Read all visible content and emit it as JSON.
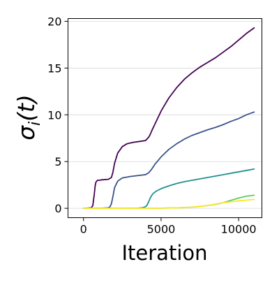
{
  "chart_data": {
    "type": "line",
    "title": "",
    "xlabel": "Iteration",
    "ylabel": "σi(t)",
    "ylabel_parts": {
      "main": "σ",
      "sub": "i",
      "arg": "(t)"
    },
    "xlim": [
      -1000,
      11500
    ],
    "ylim": [
      -1.0,
      20.3
    ],
    "xticks": [
      0,
      5000,
      10000
    ],
    "xtick_labels": [
      "0",
      "5000",
      "10000"
    ],
    "yticks": [
      0,
      5,
      10,
      15,
      20
    ],
    "ytick_labels": [
      "0",
      "5",
      "10",
      "15",
      "20"
    ],
    "grid": {
      "x": false,
      "y": true
    },
    "legend": "none",
    "series": [
      {
        "color": "#440154",
        "x": [
          0,
          500,
          600,
          700,
          750,
          800,
          900,
          1000,
          1200,
          1600,
          1800,
          1900,
          2000,
          2200,
          2500,
          2800,
          3200,
          3600,
          4000,
          4200,
          4300,
          4400,
          4600,
          5000,
          5500,
          6000,
          6500,
          7000,
          7500,
          8000,
          8500,
          9000,
          9500,
          10000,
          10500,
          11000
        ],
        "y": [
          0,
          0.05,
          0.3,
          1.6,
          2.4,
          2.8,
          3.0,
          3.0,
          3.05,
          3.1,
          3.3,
          3.9,
          4.8,
          5.9,
          6.6,
          6.9,
          7.05,
          7.15,
          7.25,
          7.6,
          7.9,
          8.3,
          9.0,
          10.4,
          11.8,
          12.9,
          13.8,
          14.5,
          15.1,
          15.6,
          16.1,
          16.7,
          17.3,
          18.0,
          18.7,
          19.3
        ]
      },
      {
        "color": "#3b528b",
        "x": [
          0,
          1000,
          1600,
          1700,
          1800,
          1900,
          2000,
          2200,
          2500,
          3000,
          3500,
          4000,
          4200,
          4400,
          4600,
          5000,
          5500,
          6000,
          6500,
          7000,
          7500,
          8000,
          8500,
          9000,
          9500,
          10000,
          10500,
          11000
        ],
        "y": [
          0,
          0,
          0.05,
          0.15,
          0.5,
          1.3,
          2.2,
          2.9,
          3.25,
          3.4,
          3.5,
          3.6,
          3.8,
          4.2,
          4.7,
          5.5,
          6.3,
          6.9,
          7.4,
          7.8,
          8.1,
          8.4,
          8.65,
          8.95,
          9.3,
          9.6,
          10.0,
          10.3
        ]
      },
      {
        "color": "#21918c",
        "x": [
          0,
          3000,
          3500,
          3800,
          4000,
          4100,
          4200,
          4300,
          4400,
          4500,
          4700,
          5000,
          5500,
          6000,
          6500,
          7000,
          7500,
          8000,
          8500,
          9000,
          9500,
          10000,
          10500,
          11000
        ],
        "y": [
          0,
          0,
          0.02,
          0.06,
          0.18,
          0.35,
          0.7,
          1.1,
          1.4,
          1.6,
          1.85,
          2.1,
          2.4,
          2.65,
          2.85,
          3.0,
          3.15,
          3.3,
          3.45,
          3.6,
          3.75,
          3.9,
          4.05,
          4.2
        ]
      },
      {
        "color": "#5ec962",
        "x": [
          0,
          4000,
          5000,
          6000,
          6500,
          7000,
          7500,
          8000,
          8500,
          9000,
          9500,
          10000,
          10500,
          11000
        ],
        "y": [
          0,
          0,
          0.02,
          0.05,
          0.08,
          0.12,
          0.2,
          0.3,
          0.42,
          0.6,
          0.85,
          1.1,
          1.3,
          1.4
        ]
      },
      {
        "color": "#fde725",
        "x": [
          0,
          4000,
          5000,
          6000,
          6500,
          7000,
          7500,
          8000,
          8500,
          9000,
          9500,
          10000,
          10500,
          11000
        ],
        "y": [
          0,
          0,
          0.02,
          0.05,
          0.08,
          0.12,
          0.2,
          0.3,
          0.45,
          0.6,
          0.7,
          0.8,
          0.88,
          0.95
        ]
      }
    ]
  }
}
